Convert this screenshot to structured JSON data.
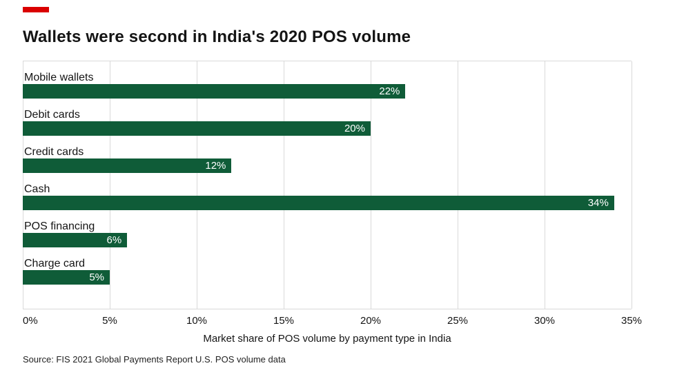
{
  "colors": {
    "accent": "#da0000",
    "bar": "#0f5c38",
    "grid": "#d9d9d9"
  },
  "chart_data": {
    "type": "bar",
    "orientation": "horizontal",
    "title": "Wallets were second in India's 2020 POS volume",
    "categories": [
      "Mobile wallets",
      "Debit cards",
      "Credit cards",
      "Cash",
      "POS financing",
      "Charge card"
    ],
    "values": [
      22,
      20,
      12,
      34,
      6,
      5
    ],
    "value_labels": [
      "22%",
      "20%",
      "12%",
      "34%",
      "6%",
      "5%"
    ],
    "xlabel": "Market share of POS volume by payment type in India",
    "ylabel": "",
    "xlim": [
      0,
      35
    ],
    "x_ticks": [
      0,
      5,
      10,
      15,
      20,
      25,
      30,
      35
    ],
    "x_tick_labels": [
      "0%",
      "5%",
      "10%",
      "15%",
      "20%",
      "25%",
      "30%",
      "35%"
    ],
    "grid": true,
    "legend": "none",
    "source": "Source: FIS 2021 Global Payments Report U.S. POS volume data"
  }
}
